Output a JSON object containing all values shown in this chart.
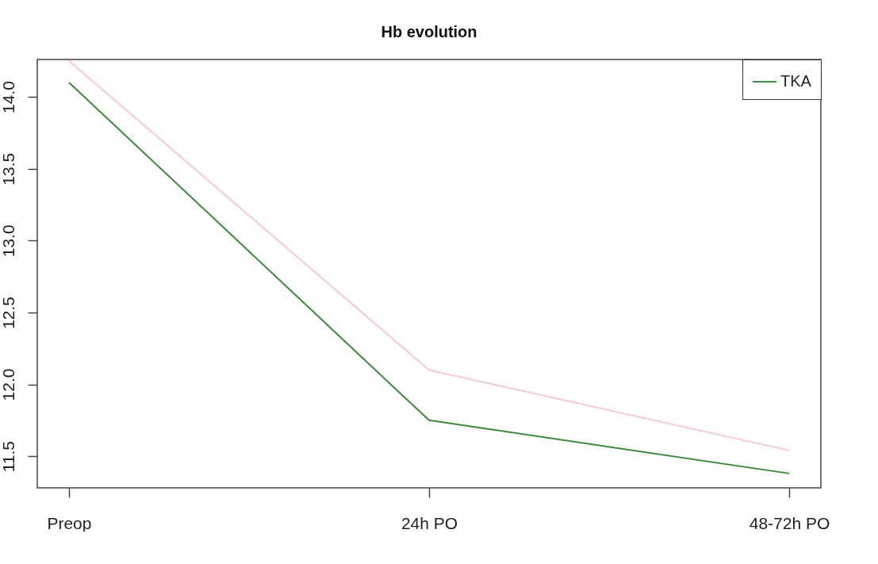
{
  "chart_data": {
    "type": "line",
    "title": "Hb evolution",
    "categories": [
      "Preop",
      "24h PO",
      "48-72h PO"
    ],
    "series": [
      {
        "name": "TKA",
        "color": "#3a8a3a",
        "values": [
          14.1,
          11.75,
          11.38
        ]
      },
      {
        "color": "#f8c8d4",
        "values": [
          14.25,
          12.1,
          11.54
        ]
      }
    ],
    "ylim": [
      11.28,
      14.26
    ],
    "yticks": [
      {
        "value": 11.5,
        "label": "11.5"
      },
      {
        "value": 12,
        "label": "12.0"
      },
      {
        "value": 12.5,
        "label": "12.5"
      },
      {
        "value": 13,
        "label": "13.0"
      },
      {
        "value": 13.5,
        "label": "13.5"
      },
      {
        "value": 14,
        "label": "14.0"
      }
    ],
    "grid": false,
    "legend": "top right",
    "marker": "none",
    "line_style": "solid"
  }
}
